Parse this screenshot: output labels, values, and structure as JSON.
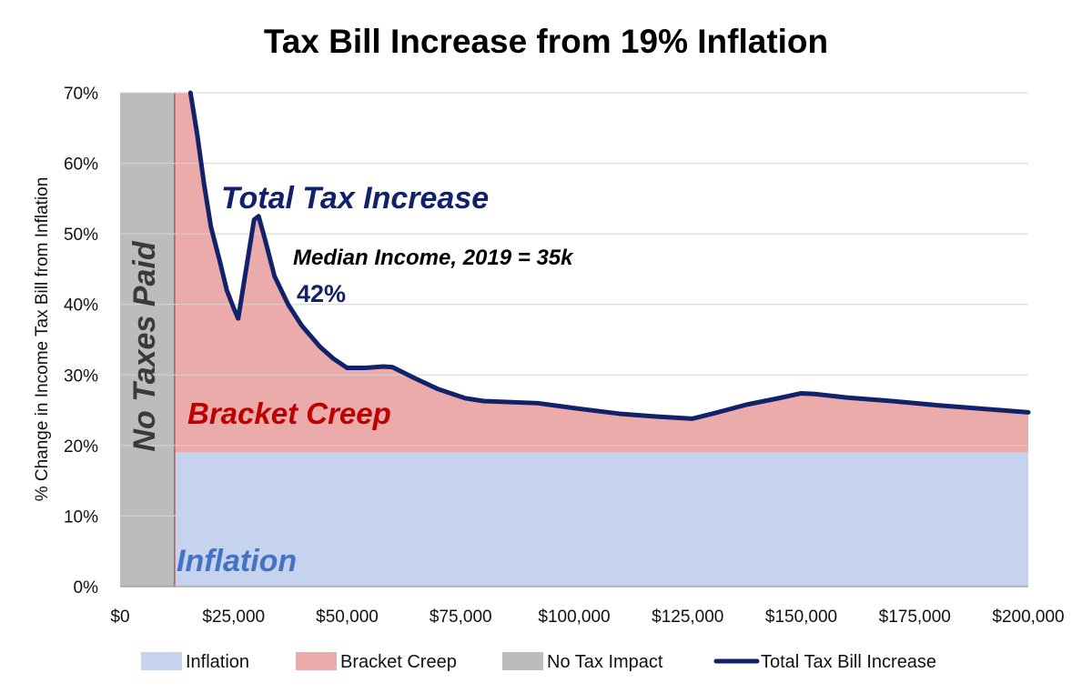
{
  "chart_data": {
    "type": "area",
    "title": "Tax Bill Increase from 19% Inflation",
    "xlabel": "",
    "ylabel": "% Change in Income Tax Bill from Inflation",
    "xlim": [
      0,
      200000
    ],
    "ylim": [
      0,
      70
    ],
    "x_ticks": [
      "$0",
      "$25,000",
      "$50,000",
      "$75,000",
      "$100,000",
      "$125,000",
      "$150,000",
      "$175,000",
      "$200,000"
    ],
    "y_ticks": [
      "0%",
      "10%",
      "20%",
      "30%",
      "40%",
      "50%",
      "60%",
      "70%"
    ],
    "grid": "horizontal",
    "legend_position": "bottom",
    "no_tax_region": [
      0,
      12000
    ],
    "inflation_level": 19,
    "series": [
      {
        "name": "Total Tax Bill Increase",
        "color": "#12226a",
        "points": [
          [
            15500,
            70
          ],
          [
            17000,
            64
          ],
          [
            18500,
            57
          ],
          [
            20000,
            51
          ],
          [
            22000,
            46
          ],
          [
            23500,
            42
          ],
          [
            25000,
            39.5
          ],
          [
            26000,
            38
          ],
          [
            27000,
            42
          ],
          [
            28500,
            48
          ],
          [
            29500,
            52
          ],
          [
            30500,
            52.5
          ],
          [
            32000,
            49
          ],
          [
            34000,
            44
          ],
          [
            37000,
            40
          ],
          [
            40000,
            37
          ],
          [
            44000,
            34
          ],
          [
            47000,
            32.3
          ],
          [
            50000,
            31
          ],
          [
            54000,
            31
          ],
          [
            58000,
            31.2
          ],
          [
            60000,
            31.1
          ],
          [
            65000,
            29.5
          ],
          [
            70000,
            28
          ],
          [
            76000,
            26.7
          ],
          [
            80000,
            26.3
          ],
          [
            92000,
            26
          ],
          [
            100000,
            25.3
          ],
          [
            110000,
            24.5
          ],
          [
            118000,
            24.1
          ],
          [
            126000,
            23.8
          ],
          [
            131000,
            24.6
          ],
          [
            138000,
            25.8
          ],
          [
            145000,
            26.7
          ],
          [
            150000,
            27.4
          ],
          [
            153000,
            27.3
          ],
          [
            160000,
            26.8
          ],
          [
            170000,
            26.3
          ],
          [
            180000,
            25.7
          ],
          [
            190000,
            25.2
          ],
          [
            200000,
            24.7
          ]
        ]
      }
    ],
    "legend": [
      {
        "label": "Inflation",
        "color": "#c5d3ef",
        "kind": "area"
      },
      {
        "label": "Bracket Creep",
        "color": "#ebabab",
        "kind": "area"
      },
      {
        "label": "No Tax Impact",
        "color": "#bcbcbc",
        "kind": "area"
      },
      {
        "label": "Total Tax Bill Increase",
        "color": "#12226a",
        "kind": "line"
      }
    ],
    "annotations": {
      "total": "Total Tax Increase",
      "median": "Median Income, 2019 = 35k",
      "median_pct": "42%",
      "bracket": "Bracket Creep",
      "inflation": "Inflation",
      "no_taxes": "No Taxes Paid"
    },
    "colors": {
      "inflation": "#c5d3ef",
      "bracket": "#ebabab",
      "no_tax": "#bcbcbc",
      "line": "#12226a",
      "bracket_text": "#c00000",
      "inflation_text": "#4472c4"
    }
  }
}
